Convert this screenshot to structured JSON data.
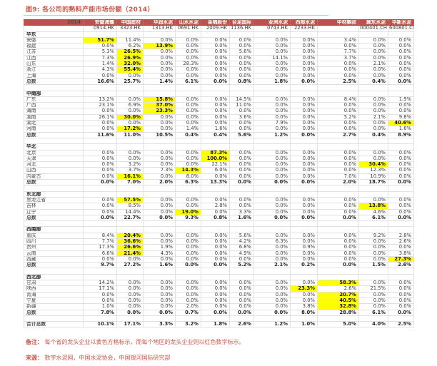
{
  "title": "图9:  各公司的熟料产能市场份额（2014）",
  "colors": {
    "header_bg": "#c0504d",
    "leader_cell_yellow": "#ffff00",
    "leader_number_red": "#f04434",
    "title_red": "#cd574d",
    "grid": "#e2e2e2"
  },
  "table": {
    "year_label": "2014",
    "companies": [
      {
        "name": "安徽海螺",
        "code": "0914.HK"
      },
      {
        "name": "中国建材",
        "code": "3323.HK"
      },
      {
        "name": "华润水泥",
        "code": "1313.HK"
      },
      {
        "name": "山水水泥",
        "code": "0691.HK"
      },
      {
        "name": "金隅股份",
        "code": "2009.HK"
      },
      {
        "name": "台泥国际",
        "code": "1136.HK"
      },
      {
        "name": "亚洲水泥",
        "code": "0743.HK"
      },
      {
        "name": "西部水泥",
        "code": "2233.HK"
      },
      {
        "name": "中材集团",
        "code": ""
      },
      {
        "name": "冀东水泥",
        "code": "000401.CH"
      },
      {
        "name": "华新水泥",
        "code": "600801.CH"
      }
    ],
    "sections": [
      {
        "region": "华东",
        "rows": [
          {
            "label": "安徽",
            "values": [
              "51.7%",
              "11.4%",
              "0.0%",
              "0.0%",
              "0.0%",
              "0.0%",
              "0.0%",
              "0.0%",
              "3.4%",
              "0.0%",
              "0.0%"
            ],
            "yellow": 0,
            "red": -1,
            "total": false
          },
          {
            "label": "福建",
            "values": [
              "0.0%",
              "6.2%",
              "13.9%",
              "0.0%",
              "0.0%",
              "0.0%",
              "0.0%",
              "0.0%",
              "0.0%",
              "0.0%",
              "0.0%"
            ],
            "yellow": 2,
            "red": -1,
            "total": false
          },
          {
            "label": "江苏",
            "values": [
              "5.3%",
              "26.5%",
              "0.0%",
              "0.0%",
              "0.0%",
              "5.6%",
              "0.0%",
              "0.0%",
              "7.7%",
              "0.0%",
              "0.0%"
            ],
            "yellow": 1,
            "red": -1,
            "total": false
          },
          {
            "label": "江西",
            "values": [
              "7.3%",
              "26.9%",
              "0.0%",
              "0.0%",
              "0.0%",
              "0.0%",
              "14.1%",
              "0.0%",
              "3.7%",
              "0.0%",
              "0.0%"
            ],
            "yellow": 1,
            "red": -1,
            "total": false
          },
          {
            "label": "山东",
            "values": [
              "1.4%",
              "32.0%",
              "0.0%",
              "28.3%",
              "0.0%",
              "0.0%",
              "0.0%",
              "0.0%",
              "0.0%",
              "2.1%",
              "0.0%"
            ],
            "yellow": 1,
            "red": -1,
            "total": false
          },
          {
            "label": "浙江",
            "values": [
              "4.3%",
              "55.4%",
              "0.0%",
              "0.0%",
              "0.0%",
              "0.0%",
              "0.0%",
              "0.0%",
              "0.0%",
              "0.0%",
              "0.0%"
            ],
            "yellow": 1,
            "red": -1,
            "total": false
          },
          {
            "label": "上海",
            "values": [
              "0.0%",
              "0.0%",
              "0.0%",
              "0.0%",
              "0.0%",
              "0.0%",
              "0.0%",
              "0.0%",
              "0.0%",
              "0.0%",
              "0.0%"
            ],
            "yellow": -1,
            "red": -1,
            "total": false
          },
          {
            "label": "总数",
            "values": [
              "16.6%",
              "25.7%",
              "1.4%",
              "6.1%",
              "0.0%",
              "0.8%",
              "1.8%",
              "0.0%",
              "2.5%",
              "0.4%",
              "0.0%"
            ],
            "yellow": -1,
            "red": 1,
            "total": true
          }
        ]
      },
      {
        "region": "中南部",
        "rows": [
          {
            "label": "广东",
            "values": [
              "13.2%",
              "0.0%",
              "15.8%",
              "0.0%",
              "0.0%",
              "14.5%",
              "0.0%",
              "0.0%",
              "8.4%",
              "0.0%",
              "1.9%"
            ],
            "yellow": 2,
            "red": -1,
            "total": false
          },
          {
            "label": "广西",
            "values": [
              "23.1%",
              "6.9%",
              "37.0%",
              "0.0%",
              "0.0%",
              "11.0%",
              "0.0%",
              "0.0%",
              "0.0%",
              "0.0%",
              "0.0%"
            ],
            "yellow": 2,
            "red": -1,
            "total": false
          },
          {
            "label": "海南",
            "values": [
              "0.0%",
              "0.0%",
              "23.3%",
              "0.0%",
              "0.0%",
              "0.0%",
              "0.0%",
              "0.0%",
              "0.0%",
              "0.0%",
              "0.0%"
            ],
            "yellow": 2,
            "red": -1,
            "total": false
          },
          {
            "label": "湖南",
            "values": [
              "26.1%",
              "30.0%",
              "0.0%",
              "0.0%",
              "0.0%",
              "3.6%",
              "0.0%",
              "0.0%",
              "5.2%",
              "2.1%",
              "9.8%"
            ],
            "yellow": 1,
            "red": -1,
            "total": false
          },
          {
            "label": "湖北",
            "values": [
              "0.0%",
              "0.0%",
              "0.0%",
              "0.0%",
              "0.0%",
              "0.0%",
              "7.9%",
              "0.0%",
              "0.0%",
              "0.0%",
              "40.6%"
            ],
            "yellow": 10,
            "red": -1,
            "total": false
          },
          {
            "label": "河南",
            "values": [
              "0.0%",
              "17.2%",
              "0.0%",
              "1.4%",
              "1.6%",
              "0.0%",
              "0.0%",
              "0.0%",
              "0.0%",
              "0.0%",
              "1.6%"
            ],
            "yellow": 1,
            "red": -1,
            "total": false
          },
          {
            "label": "总数",
            "values": [
              "11.6%",
              "11.0%",
              "10.5%",
              "0.4%",
              "0.4%",
              "5.6%",
              "1.2%",
              "0.0%",
              "2.7%",
              "0.4%",
              "8.9%"
            ],
            "yellow": -1,
            "red": 0,
            "total": true
          }
        ]
      },
      {
        "region": "华北",
        "rows": [
          {
            "label": "北京",
            "values": [
              "0.0%",
              "0.0%",
              "0.0%",
              "0.0%",
              "87.3%",
              "0.0%",
              "0.0%",
              "0.0%",
              "0.0%",
              "0.0%",
              "0.0%"
            ],
            "yellow": 4,
            "red": -1,
            "total": false
          },
          {
            "label": "天津",
            "values": [
              "0.0%",
              "0.0%",
              "0.0%",
              "0.0%",
              "100.0%",
              "0.0%",
              "0.0%",
              "0.0%",
              "0.0%",
              "0.0%",
              "0.0%"
            ],
            "yellow": 4,
            "red": -1,
            "total": false
          },
          {
            "label": "河北",
            "values": [
              "0.0%",
              "3.2%",
              "0.0%",
              "0.0%",
              "22.1%",
              "0.0%",
              "0.0%",
              "0.0%",
              "0.0%",
              "30.4%",
              "0.0%"
            ],
            "yellow": 9,
            "red": -1,
            "total": false
          },
          {
            "label": "山西",
            "values": [
              "0.0%",
              "3.7%",
              "7.3%",
              "14.3%",
              "6.0%",
              "0.0%",
              "0.0%",
              "0.0%",
              "0.0%",
              "12.3%",
              "0.0%"
            ],
            "yellow": 3,
            "red": -1,
            "total": false
          },
          {
            "label": "内蒙古",
            "values": [
              "0.0%",
              "16.1%",
              "0.0%",
              "8.0%",
              "0.0%",
              "0.0%",
              "0.0%",
              "0.0%",
              "7.0%",
              "10.9%",
              "0.0%"
            ],
            "yellow": 1,
            "red": -1,
            "total": false
          },
          {
            "label": "总数",
            "values": [
              "0.0%",
              "7.0%",
              "2.0%",
              "6.3%",
              "13.3%",
              "0.0%",
              "0.0%",
              "0.0%",
              "2.0%",
              "18.7%",
              "0.0%"
            ],
            "yellow": -1,
            "red": 9,
            "total": true
          }
        ]
      },
      {
        "region": "东北部",
        "rows": [
          {
            "label": "黑龙江省",
            "values": [
              "0.0%",
              "57.5%",
              "0.0%",
              "0.0%",
              "0.0%",
              "0.0%",
              "0.0%",
              "0.0%",
              "0.0%",
              "0.0%",
              "0.0%"
            ],
            "yellow": 1,
            "red": -1,
            "total": false
          },
          {
            "label": "吉林",
            "values": [
              "0.0%",
              "8.5%",
              "0.0%",
              "0.0%",
              "2.8%",
              "0.0%",
              "0.0%",
              "0.0%",
              "0.0%",
              "13.8%",
              "0.0%"
            ],
            "yellow": 9,
            "red": -1,
            "total": false
          },
          {
            "label": "辽宁",
            "values": [
              "0.0%",
              "14.4%",
              "0.0%",
              "19.0%",
              "0.0%",
              "3.3%",
              "0.0%",
              "0.0%",
              "0.0%",
              "4.6%",
              "0.0%"
            ],
            "yellow": 3,
            "red": -1,
            "total": false
          },
          {
            "label": "总数",
            "values": [
              "0.0%",
              "22.7%",
              "0.0%",
              "9.3%",
              "0.8%",
              "1.6%",
              "0.0%",
              "0.0%",
              "0.0%",
              "6.1%",
              "0.0%"
            ],
            "yellow": -1,
            "red": 1,
            "total": true
          }
        ]
      },
      {
        "region": "西南部",
        "rows": [
          {
            "label": "重庆",
            "values": [
              "8.4%",
              "20.4%",
              "0.0%",
              "0.0%",
              "0.0%",
              "5.6%",
              "0.0%",
              "0.0%",
              "0.0%",
              "9.2%",
              "2.8%"
            ],
            "yellow": 1,
            "red": -1,
            "total": false
          },
          {
            "label": "四川",
            "values": [
              "7.7%",
              "36.6%",
              "0.0%",
              "0.0%",
              "0.0%",
              "4.2%",
              "6.3%",
              "0.0%",
              "0.0%",
              "0.0%",
              "2.6%"
            ],
            "yellow": 1,
            "red": -1,
            "total": false
          },
          {
            "label": "贵州",
            "values": [
              "17.3%",
              "26.6%",
              "1.9%",
              "0.0%",
              "0.0%",
              "6.8%",
              "0.0%",
              "0.9%",
              "0.0%",
              "0.0%",
              "0.0%"
            ],
            "yellow": 1,
            "red": -1,
            "total": false
          },
          {
            "label": "云南",
            "values": [
              "6.6%",
              "21.4%",
              "4.3%",
              "0.0%",
              "0.0%",
              "4.9%",
              "0.0%",
              "0.0%",
              "0.0%",
              "0.0%",
              "3.8%"
            ],
            "yellow": 1,
            "red": -1,
            "total": false
          },
          {
            "label": "西藏",
            "values": [
              "0.0%",
              "0.0%",
              "0.0%",
              "0.0%",
              "0.0%",
              "0.0%",
              "0.0%",
              "0.0%",
              "0.0%",
              "0.0%",
              "27.3%"
            ],
            "yellow": 10,
            "red": -1,
            "total": false
          },
          {
            "label": "总数",
            "values": [
              "9.7%",
              "27.2%",
              "1.6%",
              "0.0%",
              "0.0%",
              "5.2%",
              "2.1%",
              "0.2%",
              "0.0%",
              "1.5%",
              "2.6%"
            ],
            "yellow": -1,
            "red": 1,
            "total": true
          }
        ]
      },
      {
        "region": "西北部",
        "rows": [
          {
            "label": "甘肃",
            "values": [
              "14.2%",
              "0.0%",
              "0.0%",
              "0.0%",
              "0.0%",
              "0.0%",
              "0.0%",
              "0.0%",
              "58.3%",
              "0.0%",
              "0.0%"
            ],
            "yellow": 8,
            "red": -1,
            "total": false
          },
          {
            "label": "陕西",
            "values": [
              "17.1%",
              "0.0%",
              "0.0%",
              "0.0%",
              "0.0%",
              "0.0%",
              "0.0%",
              "23.3%",
              "2.6%",
              "21.5%",
              "0.0%"
            ],
            "yellow": 7,
            "red": -1,
            "total": false
          },
          {
            "label": "青海",
            "values": [
              "0.0%",
              "0.0%",
              "0.0%",
              "0.0%",
              "0.0%",
              "0.0%",
              "0.0%",
              "0.0%",
              "20.7%",
              "0.0%",
              "0.0%"
            ],
            "yellow": 8,
            "red": -1,
            "total": false
          },
          {
            "label": "宁夏",
            "values": [
              "0.0%",
              "0.0%",
              "0.0%",
              "0.0%",
              "0.0%",
              "0.0%",
              "0.0%",
              "0.0%",
              "40.5%",
              "0.0%",
              "0.0%"
            ],
            "yellow": 8,
            "red": -1,
            "total": false
          },
          {
            "label": "新疆",
            "values": [
              "1.0%",
              "0.0%",
              "0.0%",
              "2.0%",
              "0.0%",
              "0.0%",
              "0.0%",
              "3.8%",
              "32.8%",
              "0.0%",
              "0.0%"
            ],
            "yellow": 8,
            "red": -1,
            "total": false
          },
          {
            "label": "总数",
            "values": [
              "7.8%",
              "0.0%",
              "0.0%",
              "0.7%",
              "0.0%",
              "0.0%",
              "0.0%",
              "8.0%",
              "28.8%",
              "6.1%",
              "0.0%"
            ],
            "yellow": -1,
            "red": 8,
            "total": true
          }
        ]
      }
    ],
    "grand_total": {
      "label": "合计总数",
      "values": [
        "10.1%",
        "17.1%",
        "3.3%",
        "3.2%",
        "1.8%",
        "2.6%",
        "1.2%",
        "1.0%",
        "5.0%",
        "4.0%",
        "2.5%"
      ],
      "yellow": -1,
      "red": 1,
      "total": true
    }
  },
  "notes": {
    "note1_label": "备注：",
    "note1_text": "每个省的龙头企业以黄色方格标示，而每个地区的龙头企业则以红色数字标示。",
    "note2_label": "来源：",
    "note2_text": "数字水泥网，中国水泥协会，中国银河国际研究部"
  }
}
